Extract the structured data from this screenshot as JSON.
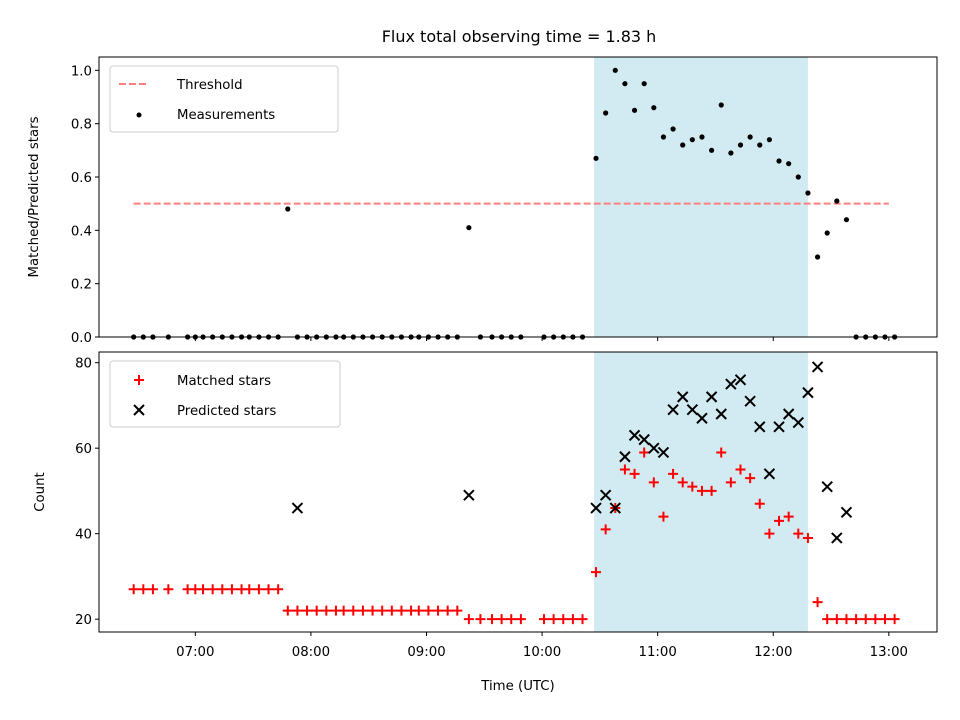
{
  "figure": {
    "title": "Flux total observing time = 1.83 h",
    "xlabel": "Time (UTC)",
    "shade_color": "#add8e6"
  },
  "chart_data": [
    {
      "type": "scatter",
      "ylabel": "Matched/Predicted stars",
      "xlim": [
        "06:10",
        "13:25"
      ],
      "ylim": [
        0,
        1.05
      ],
      "yticks": [
        0.0,
        0.2,
        0.4,
        0.6,
        0.8,
        1.0
      ],
      "ytick_labels": [
        "0.0",
        "0.2",
        "0.4",
        "0.6",
        "0.8",
        "1.0"
      ],
      "legend_position": "top-left",
      "shaded_span": [
        "10:27",
        "12:18"
      ],
      "threshold": {
        "name": "Threshold",
        "value": 0.5,
        "x": [
          "06:28",
          "13:00"
        ],
        "color": "#ff7f7f",
        "style": "dashed"
      },
      "series": [
        {
          "name": "Measurements",
          "color": "#000000",
          "marker": "dot",
          "x": [
            "06:28",
            "06:33",
            "06:38",
            "06:46",
            "06:56",
            "07:00",
            "07:04",
            "07:09",
            "07:14",
            "07:19",
            "07:24",
            "07:28",
            "07:33",
            "07:38",
            "07:43",
            "07:48",
            "07:53",
            "07:58",
            "08:03",
            "08:08",
            "08:13",
            "08:17",
            "08:22",
            "08:27",
            "08:32",
            "08:37",
            "08:42",
            "08:47",
            "08:52",
            "08:56",
            "09:01",
            "09:06",
            "09:11",
            "09:16",
            "09:22",
            "09:28",
            "09:34",
            "09:39",
            "09:44",
            "09:49",
            "10:01",
            "10:06",
            "10:11",
            "10:16",
            "10:21",
            "10:28",
            "10:33",
            "10:38",
            "10:43",
            "10:48",
            "10:53",
            "10:58",
            "11:03",
            "11:08",
            "11:13",
            "11:18",
            "11:23",
            "11:28",
            "11:33",
            "11:38",
            "11:43",
            "11:48",
            "11:53",
            "11:58",
            "12:03",
            "12:08",
            "12:13",
            "12:18",
            "12:23",
            "12:28",
            "12:33",
            "12:38",
            "12:43",
            "12:48",
            "12:53",
            "12:58",
            "13:03"
          ],
          "y": [
            0,
            0,
            0,
            0,
            0,
            0,
            0,
            0,
            0,
            0,
            0,
            0,
            0,
            0,
            0,
            0.48,
            0,
            0,
            0,
            0,
            0,
            0,
            0,
            0,
            0,
            0,
            0,
            0,
            0,
            0,
            0,
            0,
            0,
            0,
            0.41,
            0,
            0,
            0,
            0,
            0,
            0,
            0,
            0,
            0,
            0,
            0.67,
            0.84,
            1.0,
            0.95,
            0.85,
            0.95,
            0.86,
            0.75,
            0.78,
            0.72,
            0.74,
            0.75,
            0.7,
            0.87,
            0.69,
            0.72,
            0.75,
            0.72,
            0.74,
            0.66,
            0.65,
            0.6,
            0.54,
            0.3,
            0.39,
            0.51,
            0.44,
            0,
            0,
            0,
            0,
            0
          ]
        }
      ]
    },
    {
      "type": "scatter",
      "ylabel": "Count",
      "xlim": [
        "06:10",
        "13:25"
      ],
      "ylim": [
        17,
        82.5
      ],
      "yticks": [
        20,
        40,
        60,
        80
      ],
      "ytick_labels": [
        "20",
        "40",
        "60",
        "80"
      ],
      "xticks": [
        "07:00",
        "08:00",
        "09:00",
        "10:00",
        "11:00",
        "12:00",
        "13:00"
      ],
      "xtick_labels": [
        "07:00",
        "08:00",
        "09:00",
        "10:00",
        "11:00",
        "12:00",
        "13:00"
      ],
      "legend_position": "top-left",
      "shaded_span": [
        "10:27",
        "12:18"
      ],
      "series": [
        {
          "name": "Matched stars",
          "color": "#ff0000",
          "marker": "plus",
          "x": [
            "06:28",
            "06:33",
            "06:38",
            "06:46",
            "06:56",
            "07:00",
            "07:04",
            "07:09",
            "07:14",
            "07:19",
            "07:24",
            "07:28",
            "07:33",
            "07:38",
            "07:43",
            "07:48",
            "07:53",
            "07:58",
            "08:03",
            "08:08",
            "08:13",
            "08:17",
            "08:22",
            "08:27",
            "08:32",
            "08:37",
            "08:42",
            "08:47",
            "08:52",
            "08:56",
            "09:01",
            "09:06",
            "09:11",
            "09:16",
            "09:22",
            "09:28",
            "09:34",
            "09:39",
            "09:44",
            "09:49",
            "10:01",
            "10:06",
            "10:11",
            "10:16",
            "10:21",
            "10:28",
            "10:33",
            "10:38",
            "10:43",
            "10:48",
            "10:53",
            "10:58",
            "11:03",
            "11:08",
            "11:13",
            "11:18",
            "11:23",
            "11:28",
            "11:33",
            "11:38",
            "11:43",
            "11:48",
            "11:53",
            "11:58",
            "12:03",
            "12:08",
            "12:13",
            "12:18",
            "12:23",
            "12:28",
            "12:33",
            "12:38",
            "12:43",
            "12:48",
            "12:53",
            "12:58",
            "13:03"
          ],
          "y": [
            27,
            27,
            27,
            27,
            27,
            27,
            27,
            27,
            27,
            27,
            27,
            27,
            27,
            27,
            27,
            22,
            22,
            22,
            22,
            22,
            22,
            22,
            22,
            22,
            22,
            22,
            22,
            22,
            22,
            22,
            22,
            22,
            22,
            22,
            20,
            20,
            20,
            20,
            20,
            20,
            20,
            20,
            20,
            20,
            20,
            31,
            41,
            46,
            55,
            54,
            59,
            52,
            44,
            54,
            52,
            51,
            50,
            50,
            59,
            52,
            55,
            53,
            47,
            40,
            43,
            44,
            40,
            39,
            24,
            20,
            20,
            20,
            20,
            20,
            20,
            20,
            20
          ]
        },
        {
          "name": "Predicted stars",
          "color": "#000000",
          "marker": "x",
          "x": [
            "07:53",
            "09:22",
            "10:28",
            "10:33",
            "10:38",
            "10:43",
            "10:48",
            "10:53",
            "10:58",
            "11:03",
            "11:08",
            "11:13",
            "11:18",
            "11:23",
            "11:28",
            "11:33",
            "11:38",
            "11:43",
            "11:48",
            "11:53",
            "11:58",
            "12:03",
            "12:08",
            "12:13",
            "12:18",
            "12:23",
            "12:28",
            "12:33",
            "12:38"
          ],
          "y": [
            46,
            49,
            46,
            49,
            46,
            58,
            63,
            62,
            60,
            59,
            69,
            72,
            69,
            67,
            72,
            68,
            75,
            76,
            71,
            65,
            54,
            65,
            68,
            66,
            73,
            79,
            51,
            39,
            45
          ]
        }
      ]
    }
  ]
}
